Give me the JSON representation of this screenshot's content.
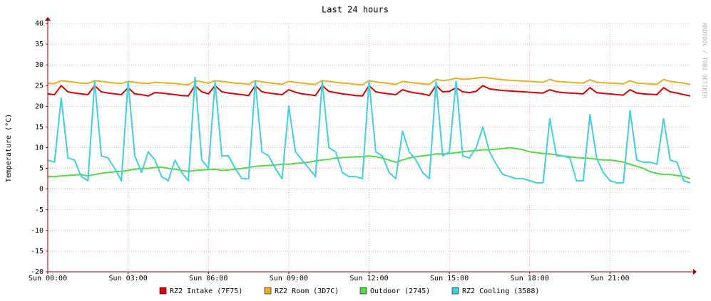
{
  "chart_data": {
    "type": "line",
    "title": "Last 24 hours",
    "ylabel": "Temperature (°C)",
    "watermark": "RRDTOOL / TOBI OETIKER",
    "x": [
      0,
      0.25,
      0.5,
      0.75,
      1,
      1.25,
      1.5,
      1.75,
      2,
      2.25,
      2.5,
      2.75,
      3,
      3.25,
      3.5,
      3.75,
      4,
      4.25,
      4.5,
      4.75,
      5,
      5.25,
      5.5,
      5.75,
      6,
      6.25,
      6.5,
      6.75,
      7,
      7.25,
      7.5,
      7.75,
      8,
      8.25,
      8.5,
      8.75,
      9,
      9.25,
      9.5,
      9.75,
      10,
      10.25,
      10.5,
      10.75,
      11,
      11.25,
      11.5,
      11.75,
      12,
      12.25,
      12.5,
      12.75,
      13,
      13.25,
      13.5,
      13.75,
      14,
      14.25,
      14.5,
      14.75,
      15,
      15.25,
      15.5,
      15.75,
      16,
      16.25,
      16.5,
      16.75,
      17,
      17.25,
      17.5,
      17.75,
      18,
      18.25,
      18.5,
      18.75,
      19,
      19.25,
      19.5,
      19.75,
      20,
      20.25,
      20.5,
      20.75,
      21,
      21.25,
      21.5,
      21.75,
      22,
      22.25,
      22.5,
      22.75,
      23,
      23.25,
      23.5,
      23.75,
      24
    ],
    "xlim": [
      0,
      24
    ],
    "xticks": [
      {
        "value": 0,
        "label": "Sun 00:00"
      },
      {
        "value": 3,
        "label": "Sun 03:00"
      },
      {
        "value": 6,
        "label": "Sun 06:00"
      },
      {
        "value": 9,
        "label": "Sun 09:00"
      },
      {
        "value": 12,
        "label": "Sun 12:00"
      },
      {
        "value": 15,
        "label": "Sun 15:00"
      },
      {
        "value": 18,
        "label": "Sun 18:00"
      },
      {
        "value": 21,
        "label": "Sun 21:00"
      }
    ],
    "ylim": [
      -20,
      40
    ],
    "yticks": [
      -20,
      -15,
      -10,
      -5,
      0,
      5,
      10,
      15,
      20,
      25,
      30,
      35,
      40
    ],
    "grid": true,
    "legend": "bottom",
    "series": [
      {
        "name": "RZ2 Intake (7F75)",
        "color": "#e00000",
        "values": [
          23,
          22.8,
          25,
          23.5,
          23.2,
          23,
          22.8,
          25,
          23.5,
          23.2,
          23,
          22.8,
          24.5,
          23,
          22.8,
          22.5,
          23.3,
          23.2,
          23,
          22.8,
          22.6,
          22.5,
          25,
          23.5,
          23,
          25,
          23.5,
          23.2,
          23,
          22.8,
          22.6,
          25,
          23.5,
          23.2,
          23,
          22.8,
          24,
          23.4,
          23,
          22.8,
          22.6,
          25,
          23.6,
          23.3,
          23,
          22.8,
          22.6,
          22.5,
          25,
          23.5,
          23.2,
          23,
          22.8,
          24,
          23.5,
          23.2,
          23,
          22.6,
          25,
          23.5,
          23.6,
          24.5,
          23.5,
          23.3,
          23.6,
          25,
          24.2,
          24,
          23.8,
          23.7,
          23.6,
          23.5,
          23.4,
          23.3,
          23.2,
          24,
          23.5,
          23.3,
          23.2,
          23.1,
          23,
          24.5,
          23.3,
          23.1,
          23,
          22.8,
          22.7,
          24,
          23.2,
          23,
          22.9,
          22.8,
          24.5,
          23.5,
          23.2,
          22.8,
          22.5
        ]
      },
      {
        "name": "RZ2 Room (3D7C)",
        "color": "#e8b020",
        "values": [
          25.5,
          25.5,
          26.2,
          26,
          25.8,
          25.6,
          25.5,
          26.2,
          26,
          25.8,
          25.6,
          25.5,
          26,
          25.8,
          25.6,
          25.5,
          25.8,
          25.7,
          25.6,
          25.5,
          25.3,
          25.2,
          26.2,
          25.9,
          25.6,
          26.2,
          26,
          25.8,
          25.6,
          25.5,
          25.3,
          26.2,
          25.9,
          25.7,
          25.5,
          25.3,
          26,
          25.8,
          25.6,
          25.4,
          25.3,
          26.2,
          26,
          25.8,
          25.6,
          25.5,
          25.3,
          25.2,
          26.2,
          25.9,
          25.7,
          25.5,
          25.3,
          26,
          25.8,
          25.6,
          25.4,
          25.3,
          26.5,
          26.2,
          26.4,
          26.8,
          26.5,
          26.6,
          26.8,
          27,
          26.8,
          26.6,
          26.4,
          26.3,
          26.2,
          26.1,
          26,
          25.9,
          25.8,
          26.5,
          26,
          25.9,
          25.8,
          25.7,
          25.6,
          26.4,
          25.8,
          25.7,
          25.6,
          25.5,
          25.4,
          26.2,
          25.6,
          25.5,
          25.4,
          25.3,
          26.5,
          26,
          25.8,
          25.6,
          25.3
        ]
      },
      {
        "name": "Outdoor (2745)",
        "color": "#50dc40",
        "values": [
          3,
          3,
          3.2,
          3.3,
          3.4,
          3.5,
          3.2,
          3.5,
          3.8,
          4,
          4.2,
          4.3,
          4.5,
          4.8,
          5,
          5,
          5.2,
          5.3,
          5,
          4.8,
          4.5,
          4.3,
          4.5,
          4.6,
          4.7,
          4.8,
          4.5,
          4.6,
          4.8,
          5,
          5.2,
          5.5,
          5.6,
          5.7,
          5.8,
          6,
          6,
          6.2,
          6.3,
          6.5,
          6.8,
          7,
          7.2,
          7.5,
          7.6,
          7.7,
          7.8,
          7.8,
          8,
          7.8,
          7.5,
          7,
          6.5,
          7,
          7.5,
          7.8,
          8,
          8.2,
          8.5,
          8.5,
          8.6,
          8.8,
          9,
          9.2,
          9.3,
          9.5,
          9.5,
          9.6,
          9.8,
          10,
          9.8,
          9.5,
          9,
          8.8,
          8.6,
          8.5,
          8.3,
          8,
          7.8,
          7.6,
          7.5,
          7.4,
          7.2,
          7,
          7,
          6.8,
          6.5,
          6,
          5.5,
          5,
          4.2,
          3.8,
          3.5,
          3.5,
          3.3,
          3,
          2.5
        ]
      },
      {
        "name": "RZ2 Cooling (3588)",
        "color": "#40d0e0",
        "values": [
          7,
          6.5,
          22,
          7.5,
          7,
          3,
          2,
          26,
          8,
          7.5,
          5,
          2,
          26,
          8,
          4,
          9,
          7,
          3,
          2,
          7,
          4,
          2,
          27,
          7,
          5,
          26,
          8,
          8,
          5,
          2.5,
          2.5,
          26,
          9,
          8,
          5,
          2.5,
          20,
          9,
          7,
          5,
          3,
          26,
          10,
          9,
          4,
          3,
          3,
          2.5,
          26,
          9,
          8,
          4,
          2.5,
          14,
          9,
          7,
          4,
          2.5,
          26,
          8,
          9,
          26,
          8,
          7.5,
          10,
          15,
          9,
          6,
          3.5,
          3,
          2.5,
          2.5,
          2,
          1.5,
          1.5,
          17,
          8,
          8,
          7.5,
          2,
          2,
          18,
          7.5,
          4,
          2,
          1.5,
          1.5,
          19,
          7,
          6.5,
          6.5,
          6,
          17,
          7,
          6.5,
          2,
          1.5
        ]
      }
    ]
  }
}
